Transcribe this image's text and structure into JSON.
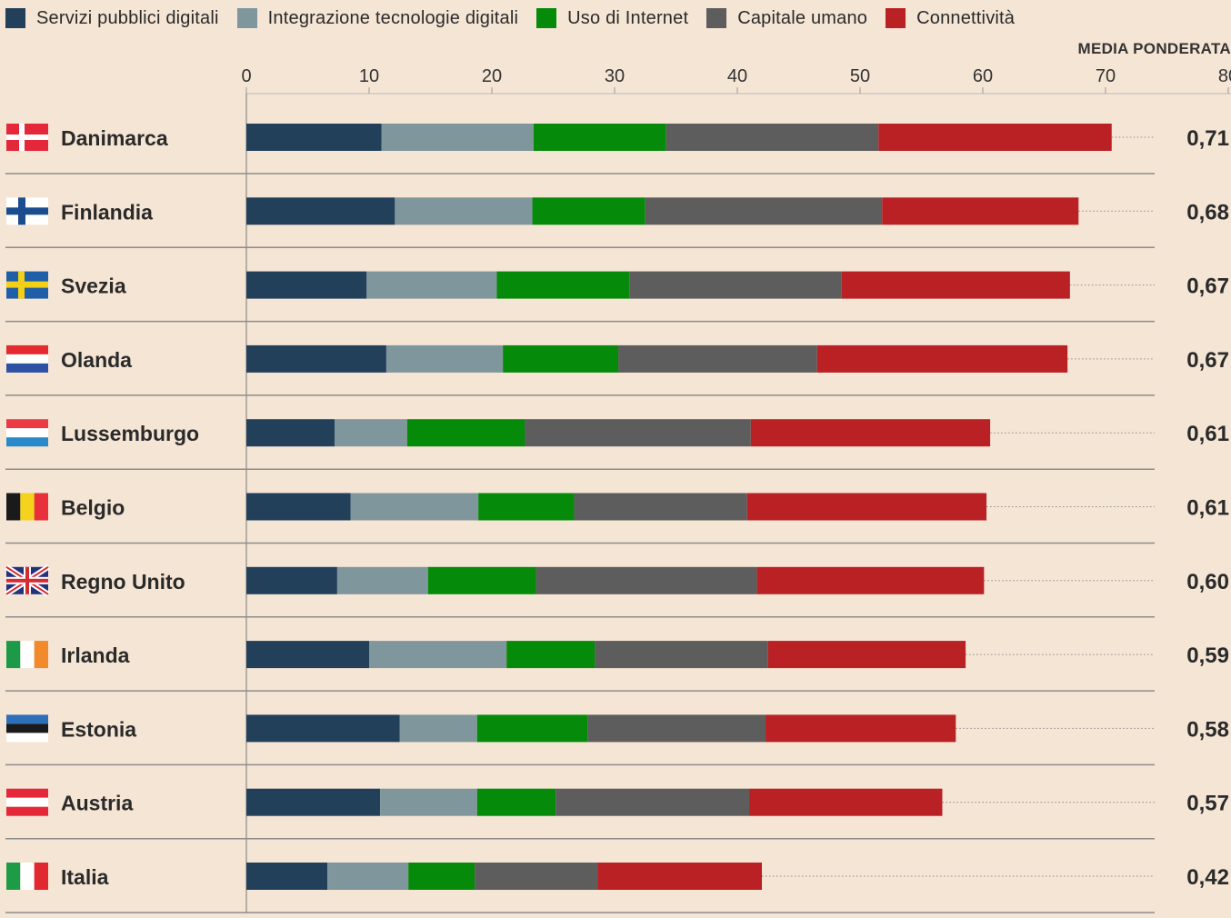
{
  "chart_data": {
    "type": "bar",
    "orientation": "horizontal",
    "stacked": true,
    "score_header": "MEDIA PONDERATA",
    "xlim": [
      0,
      80
    ],
    "x_ticks": [
      "0",
      "10",
      "20",
      "30",
      "40",
      "50",
      "60",
      "70",
      "80"
    ],
    "legend_position": "top",
    "categories": [
      "Danimarca",
      "Finlandia",
      "Svezia",
      "Olanda",
      "Lussemburgo",
      "Belgio",
      "Regno Unito",
      "Irlanda",
      "Estonia",
      "Austria",
      "Italia"
    ],
    "flags": [
      "denmark-flag",
      "finland-flag",
      "sweden-flag",
      "netherlands-flag",
      "luxembourg-flag",
      "belgium-flag",
      "uk-flag",
      "ireland-flag",
      "estonia-flag",
      "austria-flag",
      "italy-flag"
    ],
    "scores": [
      "0,71",
      "0,68",
      "0,67",
      "0,67",
      "0,61",
      "0,61",
      "0,60",
      "0,59",
      "0,58",
      "0,57",
      "0,42"
    ],
    "series": [
      {
        "name": "Servizi pubblici digitali",
        "color": "#22405a",
        "values": [
          11.0,
          12.1,
          9.8,
          11.4,
          7.2,
          8.5,
          7.4,
          10.0,
          12.5,
          10.9,
          6.6
        ]
      },
      {
        "name": "Integrazione tecnologie digitali",
        "color": "#7f969c",
        "values": [
          12.4,
          11.2,
          10.6,
          9.5,
          5.9,
          10.4,
          7.4,
          11.2,
          6.3,
          7.9,
          6.6
        ]
      },
      {
        "name": "Uso di Internet",
        "color": "#058a0a",
        "values": [
          10.8,
          9.2,
          10.8,
          9.4,
          9.6,
          7.8,
          8.8,
          7.2,
          9.0,
          6.4,
          5.4
        ]
      },
      {
        "name": "Capitale umano",
        "color": "#5d5d5d",
        "values": [
          17.3,
          19.3,
          17.3,
          16.2,
          18.4,
          14.1,
          18.0,
          14.1,
          14.5,
          15.8,
          10.0
        ]
      },
      {
        "name": "Connettività",
        "color": "#b92124",
        "values": [
          19.0,
          16.0,
          18.6,
          20.4,
          19.5,
          19.5,
          18.5,
          16.1,
          15.5,
          15.7,
          13.4
        ]
      }
    ]
  }
}
